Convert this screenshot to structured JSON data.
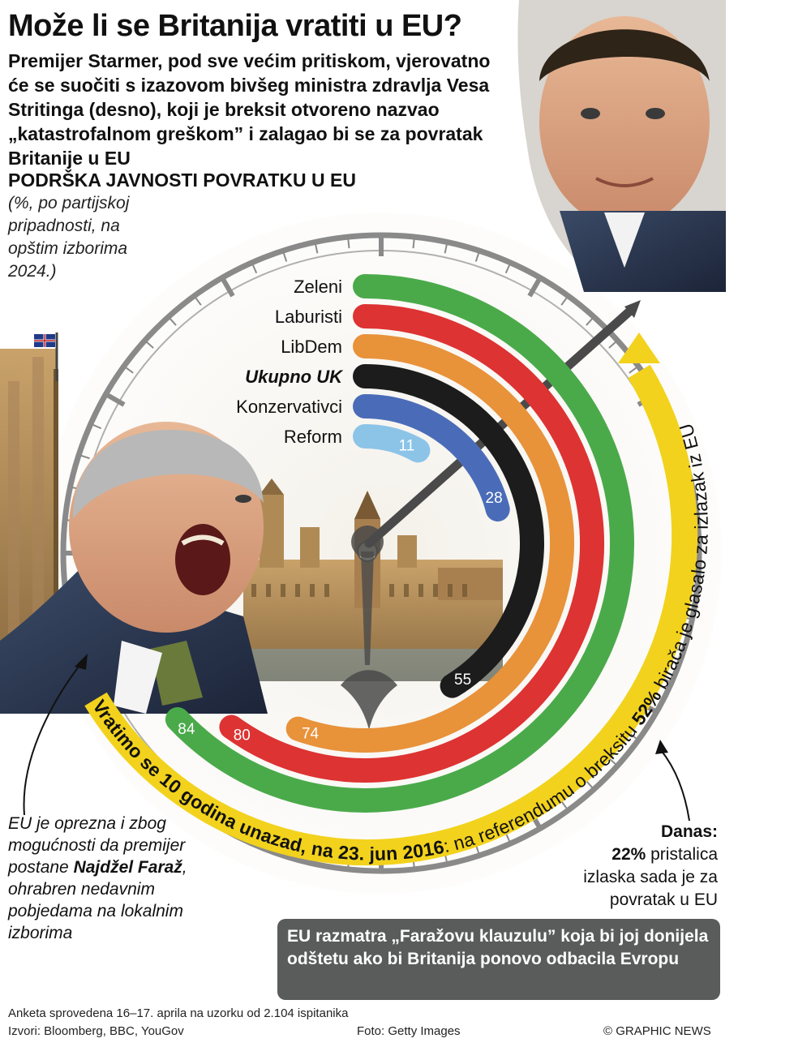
{
  "title": "Može li se Britanija vratiti u EU?",
  "intro": "Premijer Starmer, pod sve većim pritiskom, vjerovatno će se suočiti s izazovom bivšeg ministra zdravlja Vesa Stritinga (desno), koji je breksit otvoreno nazvao „katastrofalnom greškom” i zalagao bi se za povratak Britanije u EU",
  "subhead": "PODRŠKA JAVNOSTI POVRATKU U EU",
  "unit_note": "(%, po partijskoj pripadnosti, na opštim izborima 2024.)",
  "chart_data": {
    "type": "bar",
    "categories": [
      "Zeleni",
      "Laburisti",
      "LibDem",
      "Ukupno UK",
      "Konzervativci",
      "Reform"
    ],
    "values": [
      84,
      80,
      74,
      55,
      28,
      11
    ],
    "ylim": [
      0,
      100
    ],
    "colors": [
      "#4aaa4a",
      "#dd3333",
      "#e8923a",
      "#1c1c1c",
      "#4a6cb8",
      "#8cc4e8"
    ],
    "highlight_category": "Ukupno UK"
  },
  "banner": {
    "part1": "Vratimo se 10 godina unazad, na 23. jun 2016",
    "part2": ": na referendumu o breksitu ",
    "pct": "52%",
    "part3": " birača je glasalo za izlazak iz EU",
    "color": "#f2d21c"
  },
  "annotation_left": {
    "text_before": "EU je oprezna i zbog mogućnosti da premijer postane ",
    "name": "Najdžel Farаž",
    "text_after": ", ohrabren nedavnim pobjedama na lokalnim izborima"
  },
  "annotation_right": {
    "title": "Danas:",
    "pct": "22%",
    "text": " pristalica izlaska sada je za povratak u EU"
  },
  "clause_box": "EU razmatra „Faražovu klauzulu” koja bi joj donijela odštetu ako bi Britanija ponovo odbacila Evropu",
  "footer": {
    "survey": "Anketa sprovedena 16–17. aprila na uzorku od 2.104 ispitanika",
    "sources": "Izvori: Bloomberg, BBC, YouGov",
    "photo": "Foto: Getty Images",
    "copyright": "© GRAPHIC NEWS"
  }
}
